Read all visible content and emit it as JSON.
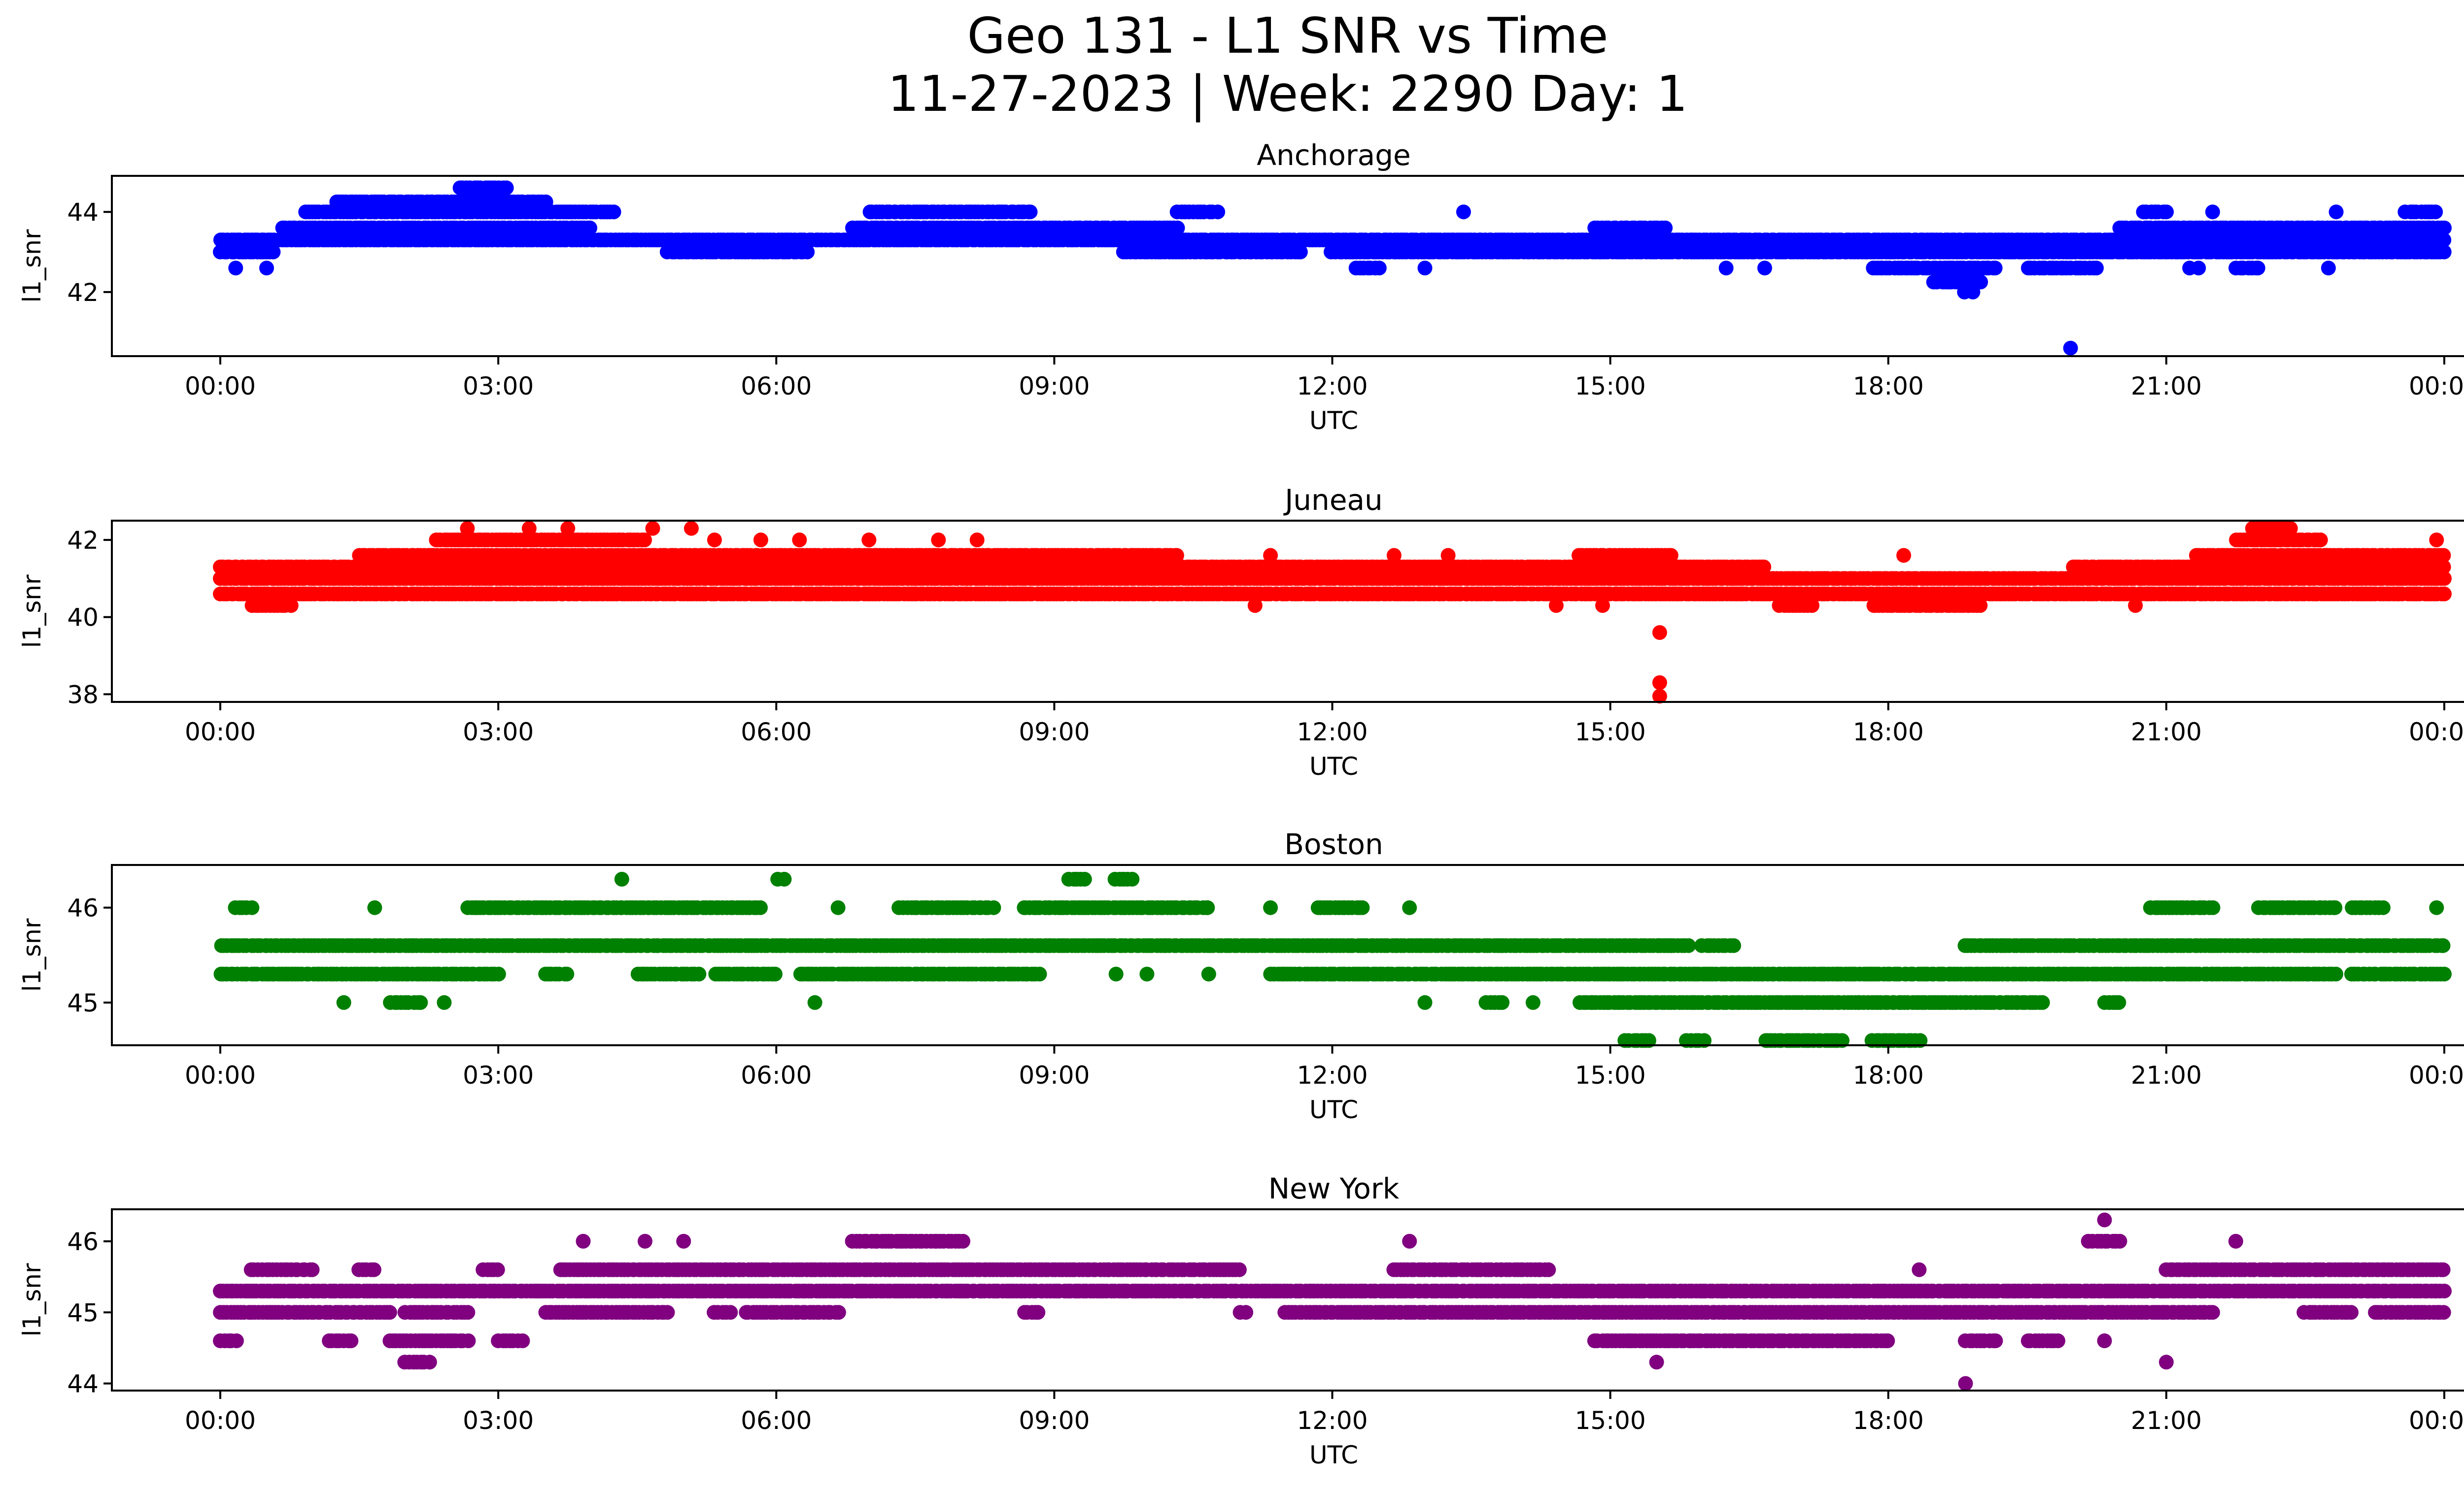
{
  "figure": {
    "title_line1": "Geo 131 - L1 SNR vs Time",
    "title_line2": "11-27-2023 | Week: 2290 Day: 1"
  },
  "chart_data": [
    {
      "type": "scatter",
      "title": "Anchorage",
      "xlabel": "UTC",
      "ylabel": "l1_snr",
      "color": "#0000ff",
      "x_ticks": [
        "00:00",
        "03:00",
        "06:00",
        "09:00",
        "12:00",
        "15:00",
        "18:00",
        "21:00",
        "00:00"
      ],
      "y_ticks": [
        42,
        44
      ],
      "xlim_hours": [
        0,
        24
      ],
      "ylim": [
        40.4,
        44.9
      ],
      "levels": [
        42.0,
        42.25,
        42.6,
        43.0,
        43.3,
        43.6,
        44.0,
        44.25,
        44.6
      ],
      "ranges": [
        {
          "level": 43.3,
          "start": "00:00",
          "end": "24:00"
        },
        {
          "level": 43.0,
          "start": "00:00",
          "end": "00:35"
        },
        {
          "level": 43.0,
          "start": "04:50",
          "end": "06:20"
        },
        {
          "level": 43.0,
          "start": "09:45",
          "end": "11:40"
        },
        {
          "level": 43.0,
          "start": "12:00",
          "end": "24:00"
        },
        {
          "level": 43.6,
          "start": "00:40",
          "end": "04:00"
        },
        {
          "level": 43.6,
          "start": "06:50",
          "end": "10:20"
        },
        {
          "level": 43.6,
          "start": "14:50",
          "end": "15:35"
        },
        {
          "level": 43.6,
          "start": "20:30",
          "end": "24:00"
        },
        {
          "level": 44.0,
          "start": "00:55",
          "end": "04:15"
        },
        {
          "level": 44.0,
          "start": "07:00",
          "end": "08:45"
        },
        {
          "level": 44.25,
          "start": "01:15",
          "end": "03:30"
        },
        {
          "level": 44.6,
          "start": "02:35",
          "end": "03:05"
        },
        {
          "level": 42.6,
          "start": "17:50",
          "end": "19:10"
        },
        {
          "level": 42.6,
          "start": "19:30",
          "end": "20:15"
        },
        {
          "level": 42.25,
          "start": "18:30",
          "end": "19:00"
        },
        {
          "level": 42.0,
          "start": "18:50",
          "end": "18:55"
        },
        {
          "level": 40.6,
          "start": "19:58",
          "end": "19:58"
        },
        {
          "level": 42.6,
          "start": "00:10",
          "end": "00:10"
        },
        {
          "level": 42.6,
          "start": "00:30",
          "end": "00:30"
        },
        {
          "level": 42.6,
          "start": "12:15",
          "end": "12:30"
        },
        {
          "level": 42.6,
          "start": "13:00",
          "end": "13:00"
        },
        {
          "level": 42.6,
          "start": "16:15",
          "end": "16:15"
        },
        {
          "level": 42.6,
          "start": "16:40",
          "end": "16:40"
        },
        {
          "level": 42.6,
          "start": "21:15",
          "end": "21:20"
        },
        {
          "level": 42.6,
          "start": "21:45",
          "end": "22:00"
        },
        {
          "level": 42.6,
          "start": "22:45",
          "end": "22:45"
        },
        {
          "level": 44.0,
          "start": "13:25",
          "end": "13:25"
        },
        {
          "level": 44.0,
          "start": "10:20",
          "end": "10:45"
        },
        {
          "level": 44.0,
          "start": "20:45",
          "end": "21:00"
        },
        {
          "level": 44.0,
          "start": "21:30",
          "end": "21:30"
        },
        {
          "level": 44.0,
          "start": "22:50",
          "end": "22:50"
        },
        {
          "level": 44.0,
          "start": "23:35",
          "end": "23:55"
        }
      ]
    },
    {
      "type": "scatter",
      "title": "Juneau",
      "xlabel": "UTC",
      "ylabel": "l1_snr",
      "color": "#ff0000",
      "x_ticks": [
        "00:00",
        "03:00",
        "06:00",
        "09:00",
        "12:00",
        "15:00",
        "18:00",
        "21:00",
        "00:00"
      ],
      "y_ticks": [
        38,
        40,
        42
      ],
      "xlim_hours": [
        0,
        24
      ],
      "ylim": [
        37.8,
        42.5
      ],
      "levels": [
        37.95,
        38.3,
        39.6,
        40.3,
        40.6,
        41.0,
        41.3,
        41.6,
        42.0,
        42.3
      ],
      "ranges": [
        {
          "level": 41.0,
          "start": "00:00",
          "end": "24:00"
        },
        {
          "level": 40.6,
          "start": "00:00",
          "end": "24:00"
        },
        {
          "level": 41.3,
          "start": "00:00",
          "end": "16:40"
        },
        {
          "level": 41.3,
          "start": "20:00",
          "end": "24:00"
        },
        {
          "level": 41.6,
          "start": "01:30",
          "end": "10:20"
        },
        {
          "level": 41.6,
          "start": "14:40",
          "end": "15:40"
        },
        {
          "level": 41.6,
          "start": "21:20",
          "end": "24:00"
        },
        {
          "level": 42.0,
          "start": "02:20",
          "end": "04:35"
        },
        {
          "level": 42.0,
          "start": "21:45",
          "end": "22:40"
        },
        {
          "level": 42.3,
          "start": "21:55",
          "end": "22:20"
        },
        {
          "level": 40.3,
          "start": "00:20",
          "end": "00:45"
        },
        {
          "level": 40.3,
          "start": "16:50",
          "end": "17:10"
        },
        {
          "level": 40.3,
          "start": "17:50",
          "end": "19:00"
        },
        {
          "level": 39.6,
          "start": "15:32",
          "end": "15:32"
        },
        {
          "level": 38.3,
          "start": "15:32",
          "end": "15:32"
        },
        {
          "level": 37.95,
          "start": "15:32",
          "end": "15:32"
        },
        {
          "level": 42.3,
          "start": "02:40",
          "end": "02:40"
        },
        {
          "level": 42.3,
          "start": "03:20",
          "end": "03:20"
        },
        {
          "level": 42.3,
          "start": "03:45",
          "end": "03:45"
        },
        {
          "level": 42.3,
          "start": "04:40",
          "end": "04:40"
        },
        {
          "level": 42.3,
          "start": "05:05",
          "end": "05:05"
        },
        {
          "level": 42.0,
          "start": "05:20",
          "end": "05:20"
        },
        {
          "level": 42.0,
          "start": "05:50",
          "end": "05:50"
        },
        {
          "level": 42.0,
          "start": "06:15",
          "end": "06:15"
        },
        {
          "level": 42.0,
          "start": "07:00",
          "end": "07:00"
        },
        {
          "level": 42.0,
          "start": "07:45",
          "end": "07:45"
        },
        {
          "level": 42.0,
          "start": "08:10",
          "end": "08:10"
        },
        {
          "level": 42.0,
          "start": "23:55",
          "end": "23:55"
        },
        {
          "level": 41.6,
          "start": "11:20",
          "end": "11:20"
        },
        {
          "level": 41.6,
          "start": "12:40",
          "end": "12:40"
        },
        {
          "level": 41.6,
          "start": "13:15",
          "end": "13:15"
        },
        {
          "level": 41.6,
          "start": "18:10",
          "end": "18:10"
        },
        {
          "level": 40.3,
          "start": "11:10",
          "end": "11:10"
        },
        {
          "level": 40.3,
          "start": "14:25",
          "end": "14:25"
        },
        {
          "level": 40.3,
          "start": "14:55",
          "end": "14:55"
        },
        {
          "level": 40.3,
          "start": "20:40",
          "end": "20:40"
        }
      ]
    },
    {
      "type": "scatter",
      "title": "Boston",
      "xlabel": "UTC",
      "ylabel": "l1_snr",
      "color": "#008000",
      "x_ticks": [
        "00:00",
        "03:00",
        "06:00",
        "09:00",
        "12:00",
        "15:00",
        "18:00",
        "21:00",
        "00:00"
      ],
      "y_ticks": [
        45,
        46
      ],
      "xlim_hours": [
        0,
        24
      ],
      "ylim": [
        44.55,
        46.45
      ],
      "levels": [
        44.6,
        45.0,
        45.3,
        45.6,
        46.0,
        46.3
      ],
      "ranges": [
        {
          "level": 45.6,
          "start": "00:00",
          "end": "15:50"
        },
        {
          "level": 45.6,
          "start": "18:50",
          "end": "24:00"
        },
        {
          "level": 45.3,
          "start": "00:00",
          "end": "03:00"
        },
        {
          "level": 45.3,
          "start": "03:30",
          "end": "03:45"
        },
        {
          "level": 45.3,
          "start": "04:30",
          "end": "05:10"
        },
        {
          "level": 45.3,
          "start": "05:20",
          "end": "06:00"
        },
        {
          "level": 45.3,
          "start": "06:15",
          "end": "08:50"
        },
        {
          "level": 45.3,
          "start": "11:20",
          "end": "22:50"
        },
        {
          "level": 45.3,
          "start": "23:00",
          "end": "24:00"
        },
        {
          "level": 45.0,
          "start": "14:40",
          "end": "19:40"
        },
        {
          "level": 46.0,
          "start": "02:40",
          "end": "05:50"
        },
        {
          "level": 46.0,
          "start": "07:20",
          "end": "08:20"
        },
        {
          "level": 46.0,
          "start": "08:40",
          "end": "10:40"
        },
        {
          "level": 46.0,
          "start": "22:00",
          "end": "22:50"
        },
        {
          "level": 46.3,
          "start": "09:10",
          "end": "09:20"
        },
        {
          "level": 46.3,
          "start": "09:40",
          "end": "09:50"
        },
        {
          "level": 46.3,
          "start": "06:00",
          "end": "06:05"
        },
        {
          "level": 46.3,
          "start": "04:20",
          "end": "04:20"
        },
        {
          "level": 44.6,
          "start": "16:40",
          "end": "17:30"
        },
        {
          "level": 44.6,
          "start": "17:50",
          "end": "18:20"
        },
        {
          "level": 44.6,
          "start": "15:10",
          "end": "15:25"
        },
        {
          "level": 44.6,
          "start": "15:50",
          "end": "16:00"
        },
        {
          "level": 45.6,
          "start": "16:00",
          "end": "16:20"
        },
        {
          "level": 45.6,
          "start": "15:30",
          "end": "15:40"
        },
        {
          "level": 46.0,
          "start": "00:10",
          "end": "00:20"
        },
        {
          "level": 46.0,
          "start": "01:40",
          "end": "01:40"
        },
        {
          "level": 46.0,
          "start": "06:40",
          "end": "06:40"
        },
        {
          "level": 46.0,
          "start": "11:20",
          "end": "11:20"
        },
        {
          "level": 46.0,
          "start": "11:50",
          "end": "12:20"
        },
        {
          "level": 46.0,
          "start": "12:50",
          "end": "12:50"
        },
        {
          "level": 46.0,
          "start": "20:50",
          "end": "21:30"
        },
        {
          "level": 46.0,
          "start": "23:00",
          "end": "23:20"
        },
        {
          "level": 46.0,
          "start": "23:55",
          "end": "23:55"
        },
        {
          "level": 45.0,
          "start": "01:20",
          "end": "01:20"
        },
        {
          "level": 45.0,
          "start": "01:50",
          "end": "02:10"
        },
        {
          "level": 45.0,
          "start": "02:25",
          "end": "02:25"
        },
        {
          "level": 45.0,
          "start": "06:25",
          "end": "06:25"
        },
        {
          "level": 45.0,
          "start": "13:00",
          "end": "13:00"
        },
        {
          "level": 45.0,
          "start": "13:40",
          "end": "13:50"
        },
        {
          "level": 45.0,
          "start": "14:10",
          "end": "14:10"
        },
        {
          "level": 45.0,
          "start": "20:20",
          "end": "20:30"
        },
        {
          "level": 45.3,
          "start": "09:40",
          "end": "09:40"
        },
        {
          "level": 45.3,
          "start": "10:00",
          "end": "10:00"
        },
        {
          "level": 45.3,
          "start": "10:40",
          "end": "10:40"
        }
      ]
    },
    {
      "type": "scatter",
      "title": "New York",
      "xlabel": "UTC",
      "ylabel": "l1_snr",
      "color": "#800080",
      "x_ticks": [
        "00:00",
        "03:00",
        "06:00",
        "09:00",
        "12:00",
        "15:00",
        "18:00",
        "21:00",
        "00:00"
      ],
      "y_ticks": [
        44,
        45,
        46
      ],
      "xlim_hours": [
        0,
        24
      ],
      "ylim": [
        43.9,
        46.45
      ],
      "levels": [
        44.0,
        44.3,
        44.6,
        45.0,
        45.3,
        45.6,
        46.0,
        46.3
      ],
      "ranges": [
        {
          "level": 45.3,
          "start": "00:00",
          "end": "24:00"
        },
        {
          "level": 45.0,
          "start": "00:00",
          "end": "01:50"
        },
        {
          "level": 45.0,
          "start": "02:00",
          "end": "02:40"
        },
        {
          "level": 45.0,
          "start": "03:30",
          "end": "04:50"
        },
        {
          "level": 45.0,
          "start": "05:20",
          "end": "05:30"
        },
        {
          "level": 45.0,
          "start": "05:40",
          "end": "06:40"
        },
        {
          "level": 45.0,
          "start": "08:40",
          "end": "08:50"
        },
        {
          "level": 45.0,
          "start": "11:00",
          "end": "11:05"
        },
        {
          "level": 45.0,
          "start": "11:30",
          "end": "21:30"
        },
        {
          "level": 45.0,
          "start": "22:30",
          "end": "23:00"
        },
        {
          "level": 45.0,
          "start": "23:15",
          "end": "24:00"
        },
        {
          "level": 45.6,
          "start": "00:20",
          "end": "01:00"
        },
        {
          "level": 45.6,
          "start": "03:40",
          "end": "11:00"
        },
        {
          "level": 45.6,
          "start": "12:40",
          "end": "14:20"
        },
        {
          "level": 45.6,
          "start": "21:00",
          "end": "24:00"
        },
        {
          "level": 44.6,
          "start": "14:50",
          "end": "18:00"
        },
        {
          "level": 44.6,
          "start": "01:50",
          "end": "02:40"
        },
        {
          "level": 44.6,
          "start": "03:00",
          "end": "03:15"
        },
        {
          "level": 44.6,
          "start": "01:10",
          "end": "01:25"
        },
        {
          "level": 44.3,
          "start": "02:00",
          "end": "02:15"
        },
        {
          "level": 44.3,
          "start": "15:30",
          "end": "15:30"
        },
        {
          "level": 44.3,
          "start": "21:00",
          "end": "21:00"
        },
        {
          "level": 44.0,
          "start": "18:50",
          "end": "18:50"
        },
        {
          "level": 46.0,
          "start": "06:50",
          "end": "08:00"
        },
        {
          "level": 46.0,
          "start": "03:55",
          "end": "03:55"
        },
        {
          "level": 46.0,
          "start": "04:35",
          "end": "04:35"
        },
        {
          "level": 46.0,
          "start": "05:00",
          "end": "05:00"
        },
        {
          "level": 46.0,
          "start": "12:50",
          "end": "12:50"
        },
        {
          "level": 46.0,
          "start": "20:10",
          "end": "20:30"
        },
        {
          "level": 46.0,
          "start": "21:45",
          "end": "21:45"
        },
        {
          "level": 46.3,
          "start": "20:20",
          "end": "20:20"
        },
        {
          "level": 45.6,
          "start": "18:20",
          "end": "18:20"
        },
        {
          "level": 45.6,
          "start": "01:30",
          "end": "01:40"
        },
        {
          "level": 45.6,
          "start": "02:50",
          "end": "03:00"
        },
        {
          "level": 44.6,
          "start": "00:00",
          "end": "00:10"
        },
        {
          "level": 44.6,
          "start": "18:50",
          "end": "19:10"
        },
        {
          "level": 44.6,
          "start": "19:30",
          "end": "19:50"
        },
        {
          "level": 44.6,
          "start": "20:20",
          "end": "20:20"
        }
      ]
    }
  ]
}
